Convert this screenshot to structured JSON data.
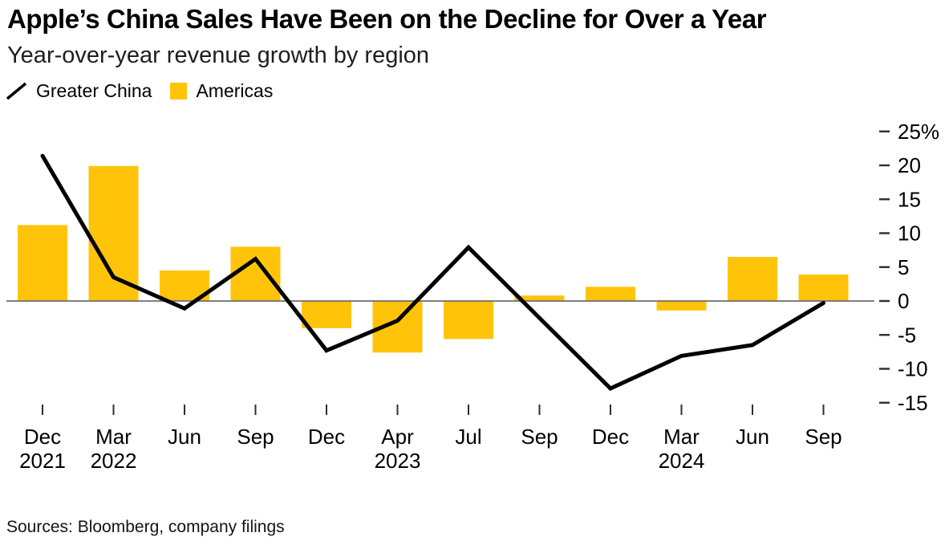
{
  "header": {
    "title": "Apple’s China Sales Have Been on the Decline for Over a Year",
    "subtitle": "Year-over-year revenue growth by region"
  },
  "legend": {
    "items": [
      {
        "label": "Greater China",
        "marker": "line-slash-icon",
        "color": "#000000"
      },
      {
        "label": "Americas",
        "marker": "square-icon",
        "color": "#FFC40A"
      }
    ]
  },
  "source": {
    "text": "Sources: Bloomberg, company filings"
  },
  "colors": {
    "bar": "#FFC40A",
    "line": "#000000",
    "zero_line": "#6e6e6e",
    "tick": "#2e2e2e",
    "axis_text": "#000000"
  },
  "chart_data": {
    "type": "bar+line",
    "title": "Apple’s China Sales Have Been on the Decline for Over a Year",
    "subtitle": "Year-over-year revenue growth by region",
    "unit": "%",
    "categories": [
      "Dec 2021",
      "Mar 2022",
      "Jun 2022",
      "Sep 2022",
      "Dec 2022",
      "Apr 2023",
      "Jul 2023",
      "Sep 2023",
      "Dec 2023",
      "Mar 2024",
      "Jun 2024",
      "Sep 2024"
    ],
    "x_ticks": [
      {
        "month": "Dec",
        "year": "2021"
      },
      {
        "month": "Mar",
        "year": "2022"
      },
      {
        "month": "Jun",
        "year": ""
      },
      {
        "month": "Sep",
        "year": ""
      },
      {
        "month": "Dec",
        "year": ""
      },
      {
        "month": "Apr",
        "year": "2023"
      },
      {
        "month": "Jul",
        "year": ""
      },
      {
        "month": "Sep",
        "year": ""
      },
      {
        "month": "Dec",
        "year": ""
      },
      {
        "month": "Mar",
        "year": "2024"
      },
      {
        "month": "Jun",
        "year": ""
      },
      {
        "month": "Sep",
        "year": ""
      }
    ],
    "series": [
      {
        "name": "Greater China",
        "type": "line",
        "color": "#000000",
        "values": [
          21.4,
          3.5,
          -1.1,
          6.2,
          -7.3,
          -2.9,
          7.9,
          -2.5,
          -12.9,
          -8.1,
          -6.5,
          -0.3
        ]
      },
      {
        "name": "Americas",
        "type": "bar",
        "color": "#FFC40A",
        "values": [
          11.2,
          19.9,
          4.5,
          8.0,
          -4.0,
          -7.6,
          -5.6,
          0.8,
          2.1,
          -1.4,
          6.5,
          3.9
        ]
      }
    ],
    "y_axis": {
      "side": "right",
      "ticks": [
        {
          "value": 25,
          "label": "25%"
        },
        {
          "value": 20,
          "label": "20"
        },
        {
          "value": 15,
          "label": "15"
        },
        {
          "value": 10,
          "label": "10"
        },
        {
          "value": 5,
          "label": "5"
        },
        {
          "value": 0,
          "label": "0"
        },
        {
          "value": -5,
          "label": "-5"
        },
        {
          "value": -10,
          "label": "-10"
        },
        {
          "value": -15,
          "label": "-15"
        }
      ]
    },
    "ylim": [
      -16.5,
      26.5
    ],
    "grid": "zero-line-only",
    "legend_position": "top-left"
  }
}
